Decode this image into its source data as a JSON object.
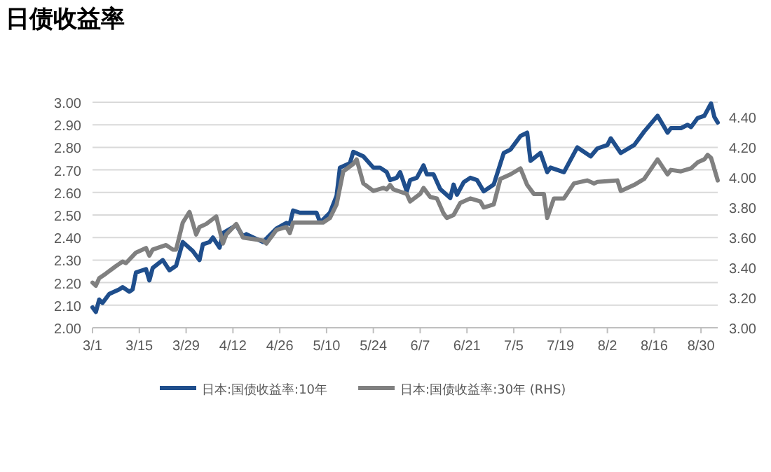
{
  "chart_data": {
    "type": "line",
    "title": "日债收益率",
    "xlim": [
      "--03-01",
      "--09-04"
    ],
    "xticks": [
      {
        "value": "--03-01",
        "label": "3/1"
      },
      {
        "value": "--03-15",
        "label": "3/15"
      },
      {
        "value": "--03-29",
        "label": "3/29"
      },
      {
        "value": "--04-12",
        "label": "4/12"
      },
      {
        "value": "--04-26",
        "label": "4/26"
      },
      {
        "value": "--05-10",
        "label": "5/10"
      },
      {
        "value": "--05-24",
        "label": "5/24"
      },
      {
        "value": "--06-07",
        "label": "6/7"
      },
      {
        "value": "--06-21",
        "label": "6/21"
      },
      {
        "value": "--07-05",
        "label": "7/5"
      },
      {
        "value": "--07-19",
        "label": "7/19"
      },
      {
        "value": "--08-02",
        "label": "8/2"
      },
      {
        "value": "--08-16",
        "label": "8/16"
      },
      {
        "value": "--08-30",
        "label": "8/30"
      }
    ],
    "ylim": [
      2.0,
      3.0
    ],
    "yticks": [
      {
        "value": 2.0,
        "label": "2.00"
      },
      {
        "value": 2.1,
        "label": "2.10"
      },
      {
        "value": 2.2,
        "label": "2.20"
      },
      {
        "value": 2.3,
        "label": "2.30"
      },
      {
        "value": 2.4,
        "label": "2.40"
      },
      {
        "value": 2.5,
        "label": "2.50"
      },
      {
        "value": 2.6,
        "label": "2.60"
      },
      {
        "value": 2.7,
        "label": "2.70"
      },
      {
        "value": 2.8,
        "label": "2.80"
      },
      {
        "value": 2.9,
        "label": "2.90"
      },
      {
        "value": 3.0,
        "label": "3.00"
      }
    ],
    "y2lim": [
      3.0,
      4.5
    ],
    "y2ticks": [
      {
        "value": 3.0,
        "label": "3.00"
      },
      {
        "value": 3.2,
        "label": "3.20"
      },
      {
        "value": 3.4,
        "label": "3.40"
      },
      {
        "value": 3.6,
        "label": "3.60"
      },
      {
        "value": 3.8,
        "label": "3.80"
      },
      {
        "value": 4.0,
        "label": "4.00"
      },
      {
        "value": 4.2,
        "label": "4.20"
      },
      {
        "value": 4.4,
        "label": "4.40"
      }
    ],
    "grid": "y",
    "legend": "bottom",
    "marker": "none",
    "line_style": "solid",
    "series": [
      {
        "name": "日本:国债收益率:10年",
        "color": "#1f4e8c",
        "x": [
          "--03-01",
          "--03-02",
          "--03-03",
          "--03-04",
          "--03-06",
          "--03-09",
          "--03-10",
          "--03-12",
          "--03-13",
          "--03-14",
          "--03-17",
          "--03-18",
          "--03-19",
          "--03-22",
          "--03-24",
          "--03-26",
          "--03-28",
          "--03-31",
          "--04-02",
          "--04-03",
          "--04-05",
          "--04-06",
          "--04-08",
          "--04-09",
          "--04-13",
          "--04-15",
          "--04-16",
          "--04-21",
          "--04-25",
          "--04-28",
          "--04-29",
          "--04-30",
          "--05-02",
          "--05-07",
          "--05-08",
          "--05-09",
          "--05-11",
          "--05-13",
          "--05-14",
          "--05-17",
          "--05-18",
          "--05-21",
          "--05-24",
          "--05-26",
          "--05-28",
          "--05-29",
          "--05-31",
          "--06-01",
          "--06-03",
          "--06-04",
          "--06-06",
          "--06-08",
          "--06-09",
          "--06-11",
          "--06-13",
          "--06-16",
          "--06-17",
          "--06-18",
          "--06-20",
          "--06-22",
          "--06-24",
          "--06-26",
          "--06-29",
          "--07-02",
          "--07-04",
          "--07-07",
          "--07-09",
          "--07-10",
          "--07-13",
          "--07-15",
          "--07-16",
          "--07-20",
          "--07-22",
          "--07-24",
          "--07-28",
          "--07-30",
          "--08-02",
          "--08-03",
          "--08-06",
          "--08-10",
          "--08-13",
          "--08-17",
          "--08-20",
          "--08-21",
          "--08-24",
          "--08-26",
          "--08-27",
          "--08-29",
          "--08-31",
          "--09-02",
          "--09-03",
          "--09-04"
        ],
        "values": [
          2.09,
          2.07,
          2.125,
          2.11,
          2.15,
          2.17,
          2.18,
          2.16,
          2.17,
          2.245,
          2.26,
          2.21,
          2.265,
          2.3,
          2.255,
          2.275,
          2.38,
          2.34,
          2.3,
          2.37,
          2.38,
          2.4,
          2.355,
          2.42,
          2.455,
          2.405,
          2.415,
          2.38,
          2.44,
          2.465,
          2.46,
          2.52,
          2.51,
          2.51,
          2.47,
          2.48,
          2.51,
          2.585,
          2.71,
          2.73,
          2.78,
          2.76,
          2.71,
          2.71,
          2.69,
          2.655,
          2.665,
          2.69,
          2.605,
          2.655,
          2.665,
          2.72,
          2.68,
          2.68,
          2.615,
          2.575,
          2.635,
          2.59,
          2.645,
          2.665,
          2.655,
          2.605,
          2.635,
          2.775,
          2.79,
          2.85,
          2.865,
          2.74,
          2.775,
          2.69,
          2.71,
          2.69,
          2.745,
          2.8,
          2.76,
          2.795,
          2.81,
          2.84,
          2.775,
          2.81,
          2.87,
          2.94,
          2.865,
          2.885,
          2.885,
          2.9,
          2.89,
          2.93,
          2.94,
          2.995,
          2.935,
          2.91
        ]
      },
      {
        "name": "日本:国债收益率:30年 (RHS)",
        "color": "#808080",
        "axis": "y2",
        "x": [
          "--03-01",
          "--03-02",
          "--03-03",
          "--03-05",
          "--03-08",
          "--03-10",
          "--03-11",
          "--03-14",
          "--03-17",
          "--03-18",
          "--03-19",
          "--03-23",
          "--03-25",
          "--03-26",
          "--03-28",
          "--03-30",
          "--04-01",
          "--04-02",
          "--04-04",
          "--04-07",
          "--04-09",
          "--04-10",
          "--04-13",
          "--04-15",
          "--04-21",
          "--04-22",
          "--04-25",
          "--04-28",
          "--04-29",
          "--04-30",
          "--05-09",
          "--05-11",
          "--05-13",
          "--05-15",
          "--05-18",
          "--05-19",
          "--05-21",
          "--05-24",
          "--05-27",
          "--05-28",
          "--05-29",
          "--05-30",
          "--06-03",
          "--06-04",
          "--06-07",
          "--06-08",
          "--06-10",
          "--06-12",
          "--06-14",
          "--06-15",
          "--06-17",
          "--06-19",
          "--06-22",
          "--06-25",
          "--06-26",
          "--06-29",
          "--07-01",
          "--07-04",
          "--07-07",
          "--07-09",
          "--07-11",
          "--07-14",
          "--07-15",
          "--07-17",
          "--07-20",
          "--07-23",
          "--07-27",
          "--07-29",
          "--07-30",
          "--08-05",
          "--08-06",
          "--08-10",
          "--08-13",
          "--08-17",
          "--08-20",
          "--08-21",
          "--08-24",
          "--08-27",
          "--08-29",
          "--08-31",
          "--09-01",
          "--09-02",
          "--09-04"
        ],
        "values": [
          3.3,
          3.28,
          3.33,
          3.36,
          3.41,
          3.44,
          3.43,
          3.5,
          3.53,
          3.48,
          3.52,
          3.55,
          3.52,
          3.52,
          3.7,
          3.77,
          3.62,
          3.67,
          3.69,
          3.74,
          3.56,
          3.62,
          3.69,
          3.6,
          3.58,
          3.56,
          3.65,
          3.67,
          3.63,
          3.7,
          3.7,
          3.73,
          3.82,
          4.04,
          4.09,
          4.12,
          3.96,
          3.91,
          3.93,
          3.92,
          3.95,
          3.92,
          3.89,
          3.84,
          3.89,
          3.93,
          3.87,
          3.86,
          3.76,
          3.73,
          3.75,
          3.83,
          3.86,
          3.84,
          3.8,
          3.82,
          3.99,
          4.02,
          4.06,
          3.95,
          3.89,
          3.89,
          3.73,
          3.86,
          3.86,
          3.96,
          3.98,
          3.96,
          3.97,
          3.98,
          3.91,
          3.95,
          3.99,
          4.12,
          4.02,
          4.05,
          4.04,
          4.06,
          4.1,
          4.12,
          4.15,
          4.13,
          3.98
        ]
      }
    ]
  }
}
